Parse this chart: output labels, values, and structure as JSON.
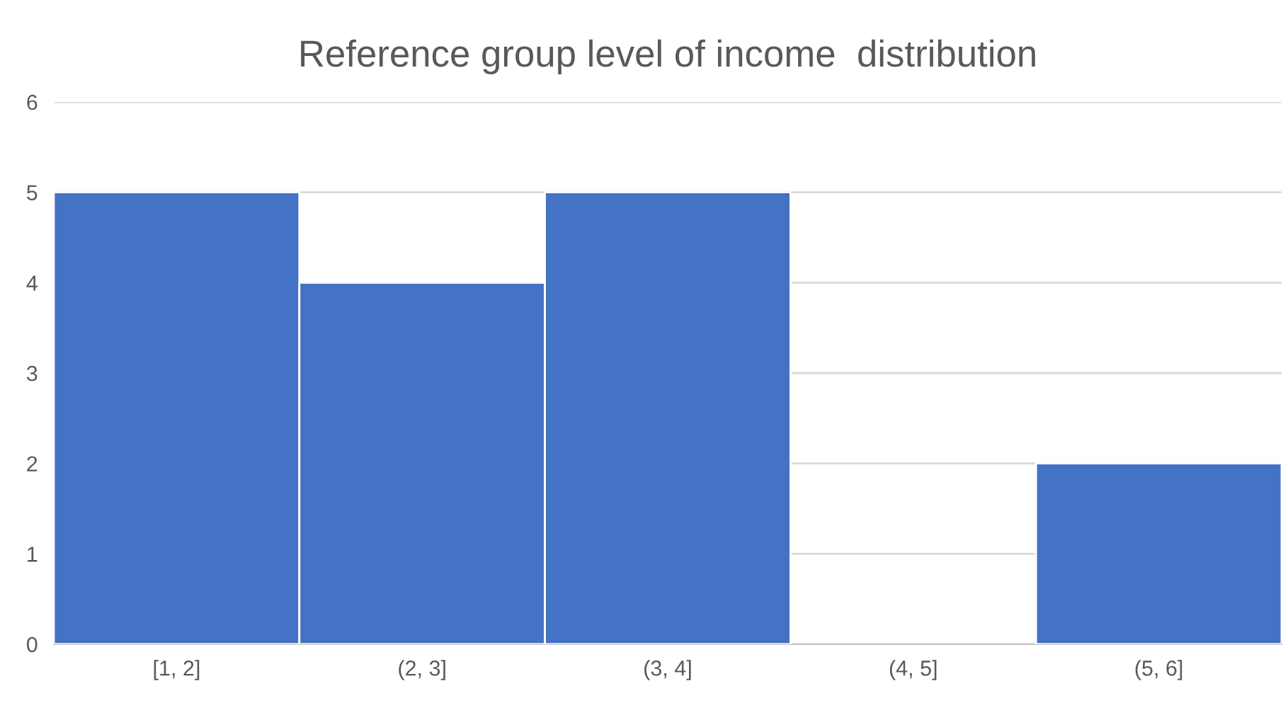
{
  "chart_data": {
    "type": "bar",
    "title": "Reference group level of income  distribution",
    "categories": [
      "[1, 2]",
      "(2, 3]",
      "(3, 4]",
      "(4, 5]",
      "(5, 6]"
    ],
    "values": [
      5,
      4,
      5,
      0,
      2
    ],
    "color": "#4472c4",
    "ylim": [
      0,
      6
    ],
    "yticks": [
      0,
      1,
      2,
      3,
      4,
      5,
      6
    ],
    "grid": "y"
  }
}
